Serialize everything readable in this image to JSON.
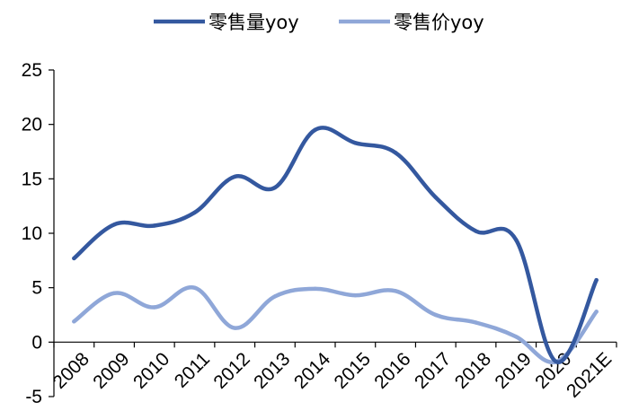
{
  "chart_data": {
    "type": "line",
    "title": "",
    "xlabel": "",
    "ylabel": "",
    "ylim": [
      -5,
      25
    ],
    "yticks": [
      -5,
      0,
      5,
      10,
      15,
      20,
      25
    ],
    "grid": false,
    "legend_position": "top-center",
    "categories": [
      "2008",
      "2009",
      "2010",
      "2011",
      "2012",
      "2013",
      "2014",
      "2015",
      "2016",
      "2017",
      "2018",
      "2019",
      "2020",
      "2021E"
    ],
    "series": [
      {
        "name": "零售量yoy",
        "color": "#34589F",
        "values": [
          7.7,
          10.8,
          10.7,
          11.9,
          15.2,
          14.2,
          19.5,
          18.3,
          17.4,
          13.3,
          10.2,
          9.4,
          -1.8,
          5.7
        ]
      },
      {
        "name": "零售价yoy",
        "color": "#8FA7D8",
        "values": [
          1.9,
          4.5,
          3.2,
          5.0,
          1.3,
          4.2,
          4.9,
          4.3,
          4.7,
          2.5,
          1.8,
          0.5,
          -1.8,
          2.8
        ]
      }
    ]
  }
}
